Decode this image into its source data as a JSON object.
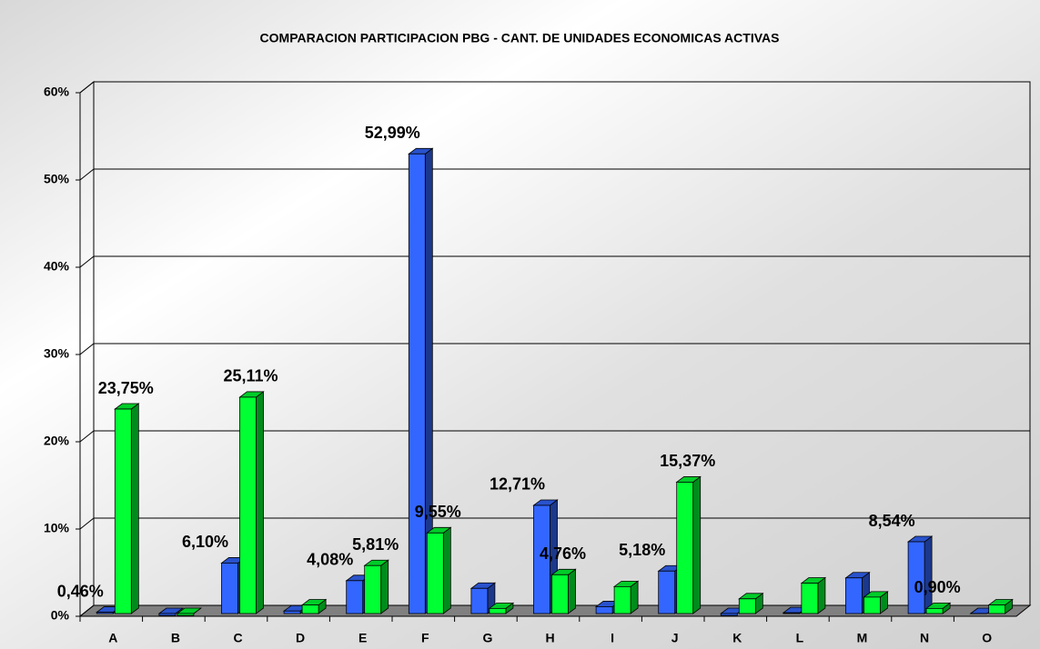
{
  "chart_data": {
    "type": "bar3d",
    "title": "COMPARACION PARTICIPACION PBG - CANT. DE UNIDADES ECONOMICAS ACTIVAS",
    "categories": [
      "A",
      "B",
      "C",
      "D",
      "E",
      "F",
      "G",
      "H",
      "I",
      "J",
      "K",
      "L",
      "M",
      "N",
      "O"
    ],
    "series": [
      {
        "color": "#3366ff",
        "values": [
          0.46,
          0.1,
          6.1,
          0.6,
          4.08,
          52.99,
          3.2,
          12.71,
          1.1,
          5.18,
          0.1,
          0.4,
          4.4,
          8.54,
          0.3
        ],
        "value_labels": [
          "0,46%",
          null,
          "6,10%",
          null,
          "4,08%",
          "52,99%",
          null,
          "12,71%",
          null,
          "5,18%",
          null,
          null,
          null,
          "8,54%",
          null
        ]
      },
      {
        "color": "#00ff33",
        "values": [
          23.75,
          0.1,
          25.11,
          1.3,
          5.81,
          9.55,
          0.9,
          4.76,
          3.4,
          15.37,
          2.0,
          3.8,
          2.2,
          0.9,
          1.3
        ],
        "value_labels": [
          "23,75%",
          null,
          "25,11%",
          null,
          "5,81%",
          "9,55%",
          null,
          "4,76%",
          null,
          "15,37%",
          null,
          null,
          null,
          "0,90%",
          null
        ]
      }
    ],
    "ylim": [
      0,
      60
    ],
    "yticks": [
      {
        "value": 0,
        "label": "0%"
      },
      {
        "value": 10,
        "label": "10%"
      },
      {
        "value": 20,
        "label": "20%"
      },
      {
        "value": 30,
        "label": "30%"
      },
      {
        "value": 40,
        "label": "40%"
      },
      {
        "value": 50,
        "label": "50%"
      },
      {
        "value": 60,
        "label": "60%"
      }
    ],
    "grid": true
  }
}
